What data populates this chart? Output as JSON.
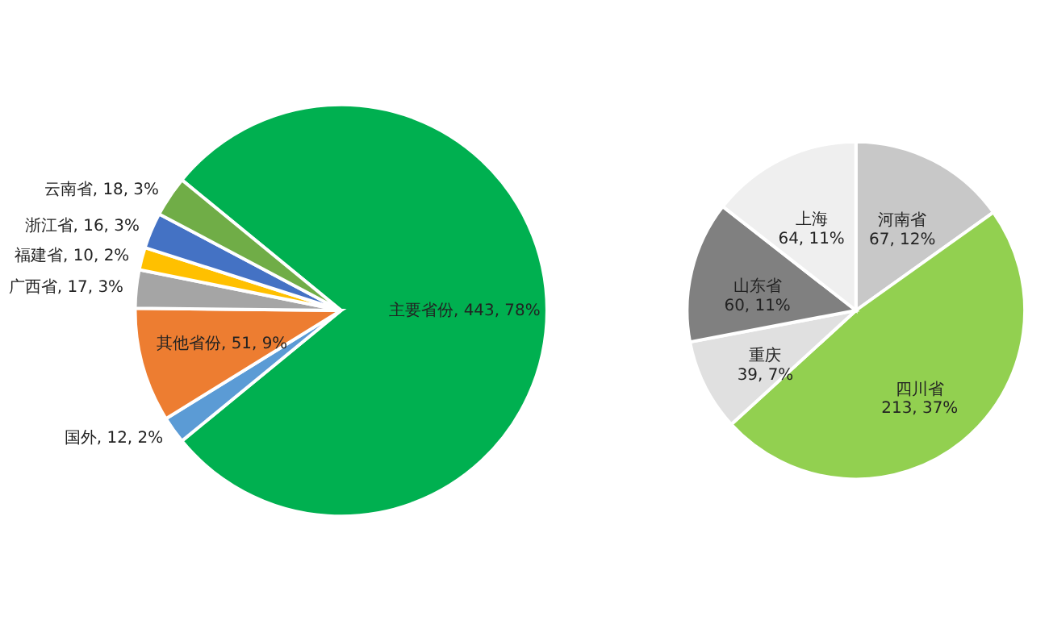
{
  "chart_data": [
    {
      "type": "pie",
      "categories": [
        "主要省份",
        "国外",
        "其他省份",
        "广西省",
        "福建省",
        "浙江省",
        "云南省"
      ],
      "values": [
        443,
        12,
        51,
        17,
        10,
        16,
        18
      ],
      "colors": [
        "#00b050",
        "#5b9bd5",
        "#ed7d31",
        "#a5a5a5",
        "#ffc000",
        "#4472c4",
        "#70ad47"
      ],
      "value_labels": [
        "443, 78%",
        "12, 2%",
        "51, 9%",
        "17, 3%",
        "10, 2%",
        "16, 3%",
        "18, 3%"
      ]
    },
    {
      "type": "pie",
      "categories": [
        "河南省",
        "四川省",
        "重庆",
        "山东省",
        "上海"
      ],
      "values": [
        67,
        213,
        39,
        60,
        64
      ],
      "colors": [
        "#c8c8c8",
        "#92d050",
        "#e0e0e0",
        "#808080",
        "#efefef"
      ],
      "value_labels": [
        "67, 12%",
        "213, 37%",
        "39, 7%",
        "60, 11%",
        "64, 11%"
      ]
    }
  ]
}
